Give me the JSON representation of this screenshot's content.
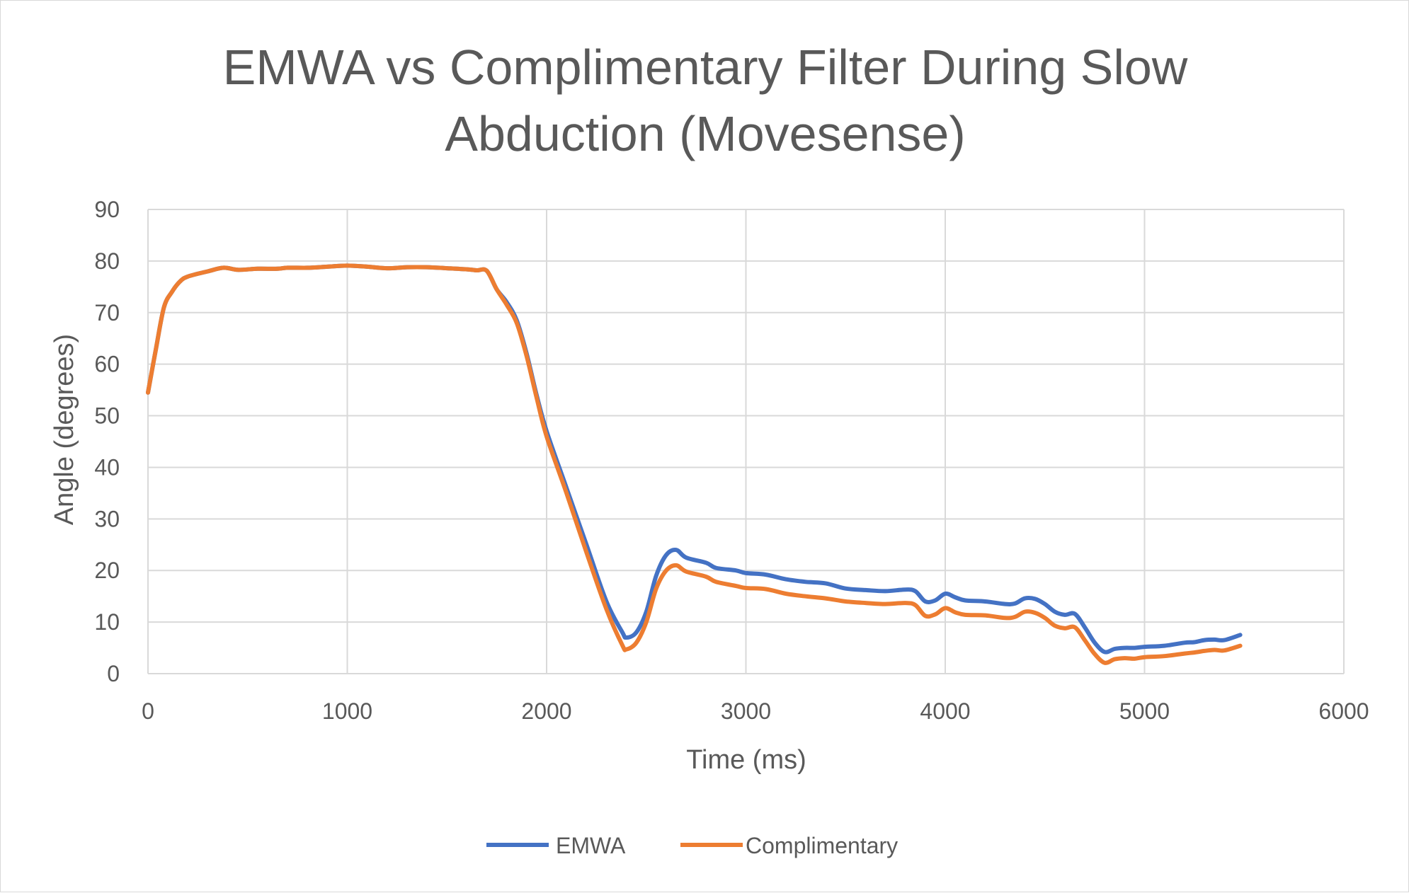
{
  "chart_data": {
    "type": "line",
    "title_lines": [
      "EMWA vs Complimentary Filter During Slow",
      "Abduction (Movesense)"
    ],
    "xlabel": "Time (ms)",
    "ylabel": "Angle (degrees)",
    "xlim": [
      0,
      6000
    ],
    "ylim": [
      0,
      90
    ],
    "xticks": [
      0,
      1000,
      2000,
      3000,
      4000,
      5000,
      6000
    ],
    "yticks": [
      0,
      10,
      20,
      30,
      40,
      50,
      60,
      70,
      80,
      90
    ],
    "grid": true,
    "legend_position": "bottom",
    "series": [
      {
        "name": "EMWA",
        "color": "#4472C4",
        "points": [
          [
            0,
            54.5
          ],
          [
            40,
            63
          ],
          [
            80,
            71
          ],
          [
            120,
            74
          ],
          [
            160,
            76
          ],
          [
            200,
            77
          ],
          [
            300,
            78
          ],
          [
            380,
            78.7
          ],
          [
            450,
            78.3
          ],
          [
            550,
            78.5
          ],
          [
            650,
            78.5
          ],
          [
            700,
            78.7
          ],
          [
            800,
            78.7
          ],
          [
            900,
            78.9
          ],
          [
            1000,
            79.1
          ],
          [
            1100,
            78.9
          ],
          [
            1200,
            78.6
          ],
          [
            1300,
            78.8
          ],
          [
            1400,
            78.8
          ],
          [
            1500,
            78.6
          ],
          [
            1600,
            78.4
          ],
          [
            1650,
            78.2
          ],
          [
            1700,
            78.1
          ],
          [
            1750,
            74.5
          ],
          [
            1800,
            72
          ],
          [
            1850,
            68.5
          ],
          [
            1900,
            62
          ],
          [
            1950,
            54
          ],
          [
            2000,
            47
          ],
          [
            2100,
            36
          ],
          [
            2200,
            25
          ],
          [
            2300,
            14
          ],
          [
            2380,
            8
          ],
          [
            2400,
            7
          ],
          [
            2450,
            8
          ],
          [
            2500,
            12
          ],
          [
            2550,
            19
          ],
          [
            2600,
            23
          ],
          [
            2650,
            24
          ],
          [
            2700,
            22.5
          ],
          [
            2800,
            21.5
          ],
          [
            2850,
            20.5
          ],
          [
            2950,
            20
          ],
          [
            3000,
            19.5
          ],
          [
            3100,
            19.2
          ],
          [
            3200,
            18.3
          ],
          [
            3300,
            17.8
          ],
          [
            3400,
            17.5
          ],
          [
            3500,
            16.5
          ],
          [
            3600,
            16.2
          ],
          [
            3700,
            16
          ],
          [
            3800,
            16.3
          ],
          [
            3850,
            16
          ],
          [
            3900,
            14
          ],
          [
            3950,
            14.2
          ],
          [
            4000,
            15.5
          ],
          [
            4050,
            14.8
          ],
          [
            4100,
            14.2
          ],
          [
            4200,
            14
          ],
          [
            4300,
            13.5
          ],
          [
            4350,
            13.6
          ],
          [
            4400,
            14.6
          ],
          [
            4450,
            14.5
          ],
          [
            4500,
            13.5
          ],
          [
            4550,
            12
          ],
          [
            4600,
            11.4
          ],
          [
            4650,
            11.6
          ],
          [
            4700,
            9
          ],
          [
            4750,
            6
          ],
          [
            4800,
            4.2
          ],
          [
            4850,
            4.8
          ],
          [
            4900,
            5
          ],
          [
            4950,
            5
          ],
          [
            5000,
            5.2
          ],
          [
            5100,
            5.4
          ],
          [
            5200,
            6
          ],
          [
            5250,
            6.1
          ],
          [
            5300,
            6.5
          ],
          [
            5350,
            6.6
          ],
          [
            5400,
            6.5
          ],
          [
            5480,
            7.5
          ]
        ]
      },
      {
        "name": "Complimentary",
        "color": "#ED7D31",
        "points": [
          [
            0,
            54.5
          ],
          [
            40,
            63
          ],
          [
            80,
            71
          ],
          [
            120,
            74
          ],
          [
            160,
            76
          ],
          [
            200,
            77
          ],
          [
            300,
            78
          ],
          [
            380,
            78.7
          ],
          [
            450,
            78.3
          ],
          [
            550,
            78.5
          ],
          [
            650,
            78.5
          ],
          [
            700,
            78.7
          ],
          [
            800,
            78.7
          ],
          [
            900,
            78.9
          ],
          [
            1000,
            79.1
          ],
          [
            1100,
            78.9
          ],
          [
            1200,
            78.6
          ],
          [
            1300,
            78.8
          ],
          [
            1400,
            78.8
          ],
          [
            1500,
            78.6
          ],
          [
            1600,
            78.4
          ],
          [
            1650,
            78.2
          ],
          [
            1700,
            78.1
          ],
          [
            1750,
            74.5
          ],
          [
            1800,
            71.5
          ],
          [
            1850,
            68
          ],
          [
            1900,
            61.5
          ],
          [
            1950,
            53.5
          ],
          [
            2000,
            46
          ],
          [
            2100,
            35
          ],
          [
            2200,
            23.5
          ],
          [
            2300,
            12.5
          ],
          [
            2380,
            5.5
          ],
          [
            2400,
            4.7
          ],
          [
            2450,
            6
          ],
          [
            2500,
            10
          ],
          [
            2550,
            16.5
          ],
          [
            2600,
            20
          ],
          [
            2650,
            21
          ],
          [
            2700,
            19.8
          ],
          [
            2800,
            18.8
          ],
          [
            2850,
            17.8
          ],
          [
            2950,
            17
          ],
          [
            3000,
            16.6
          ],
          [
            3100,
            16.4
          ],
          [
            3200,
            15.5
          ],
          [
            3300,
            15
          ],
          [
            3400,
            14.6
          ],
          [
            3500,
            14
          ],
          [
            3600,
            13.7
          ],
          [
            3700,
            13.5
          ],
          [
            3800,
            13.7
          ],
          [
            3850,
            13.3
          ],
          [
            3900,
            11.2
          ],
          [
            3950,
            11.5
          ],
          [
            4000,
            12.7
          ],
          [
            4050,
            11.9
          ],
          [
            4100,
            11.4
          ],
          [
            4200,
            11.3
          ],
          [
            4300,
            10.8
          ],
          [
            4350,
            11
          ],
          [
            4400,
            12
          ],
          [
            4450,
            11.8
          ],
          [
            4500,
            10.8
          ],
          [
            4550,
            9.3
          ],
          [
            4600,
            8.8
          ],
          [
            4650,
            9
          ],
          [
            4700,
            6.5
          ],
          [
            4750,
            3.8
          ],
          [
            4800,
            2.1
          ],
          [
            4850,
            2.8
          ],
          [
            4900,
            3
          ],
          [
            4950,
            2.9
          ],
          [
            5000,
            3.2
          ],
          [
            5100,
            3.4
          ],
          [
            5200,
            3.9
          ],
          [
            5250,
            4.1
          ],
          [
            5300,
            4.4
          ],
          [
            5350,
            4.6
          ],
          [
            5400,
            4.5
          ],
          [
            5480,
            5.4
          ]
        ]
      }
    ]
  }
}
